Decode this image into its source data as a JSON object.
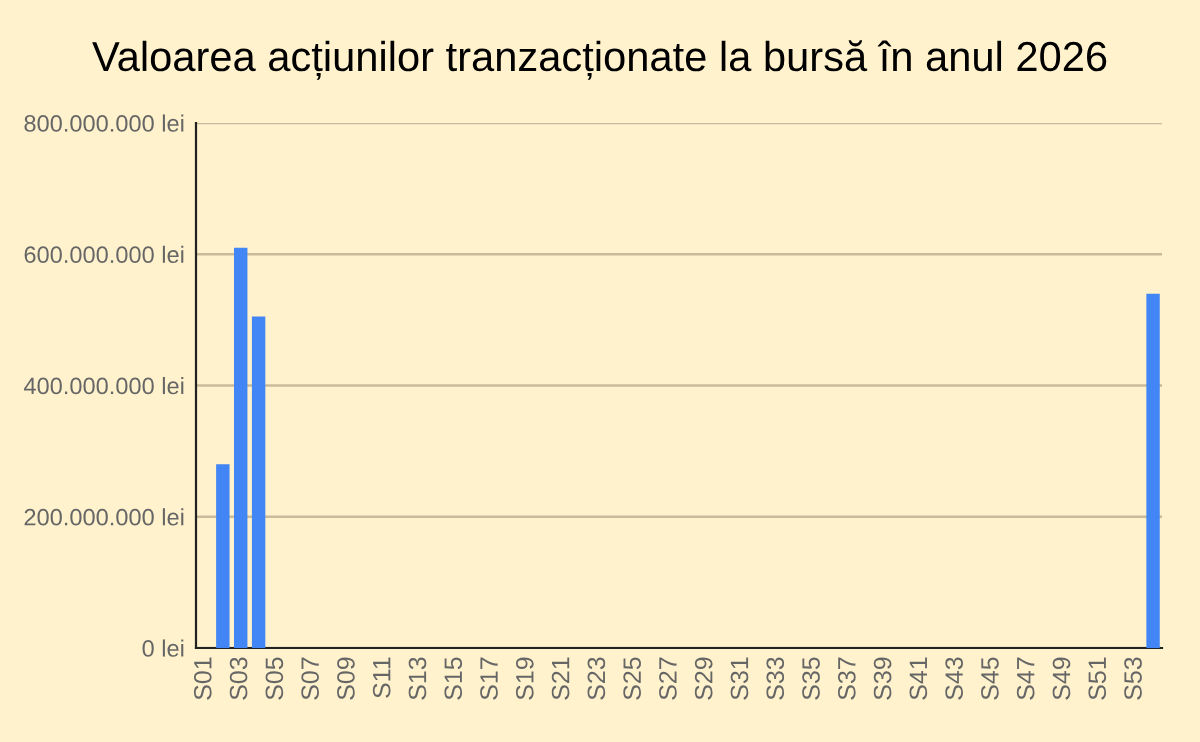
{
  "chart_data": {
    "type": "bar",
    "title": "Valoarea acțiunilor tranzacționate la bursă în anul 2026",
    "categories": [
      "S01",
      null,
      "S03",
      null,
      "S05",
      null,
      "S07",
      null,
      "S09",
      null,
      "S11",
      null,
      "S13",
      null,
      "S15",
      null,
      "S17",
      null,
      "S19",
      null,
      "S21",
      null,
      "S23",
      null,
      "S25",
      null,
      "S27",
      null,
      "S29",
      null,
      "S31",
      null,
      "S33",
      null,
      "S35",
      null,
      "S37",
      null,
      "S39",
      null,
      "S41",
      null,
      "S43",
      null,
      "S45",
      null,
      "S47",
      null,
      "S49",
      null,
      "S51",
      null,
      "S53",
      null
    ],
    "series": [
      {
        "color": "#4285f4",
        "values": [
          0,
          280000000,
          610000000,
          505000000,
          0,
          0,
          0,
          0,
          0,
          0,
          0,
          0,
          0,
          0,
          0,
          0,
          0,
          0,
          0,
          0,
          0,
          0,
          0,
          0,
          0,
          0,
          0,
          0,
          0,
          0,
          0,
          0,
          0,
          0,
          0,
          0,
          0,
          0,
          0,
          0,
          0,
          0,
          0,
          0,
          0,
          0,
          0,
          0,
          0,
          0,
          0,
          0,
          0,
          540000000
        ]
      }
    ],
    "ylim": [
      0,
      800000000
    ],
    "yticks": [
      {
        "value": 0,
        "label": "0 lei"
      },
      {
        "value": 200000000,
        "label": "200.000.000 lei"
      },
      {
        "value": 400000000,
        "label": "400.000.000 lei"
      },
      {
        "value": 600000000,
        "label": "600.000.000 lei"
      },
      {
        "value": 800000000,
        "label": "800.000.000 lei"
      }
    ],
    "grid": "y",
    "legend": false
  }
}
